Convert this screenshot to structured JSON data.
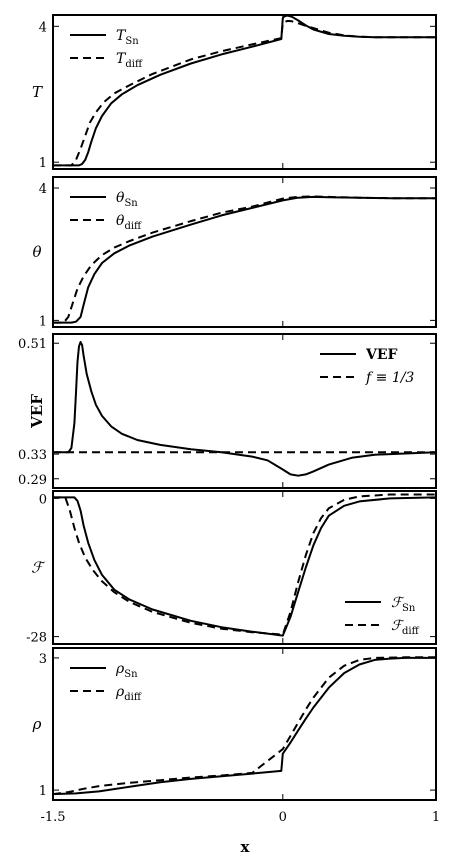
{
  "xlabel": "x",
  "xticks": [
    {
      "value": -1.5,
      "label": "-1.5"
    },
    {
      "value": 0,
      "label": "0"
    },
    {
      "value": 1,
      "label": "1"
    }
  ],
  "xlim": [
    -1.5,
    1
  ],
  "colors": {
    "line": "#000000",
    "background": "#ffffff"
  },
  "chart_data": [
    {
      "type": "line",
      "ylabel": "T",
      "ylim": [
        0.85,
        4.25
      ],
      "yticks": [
        {
          "value": 1,
          "label": "1"
        },
        {
          "value": 4,
          "label": "4"
        }
      ],
      "legend": {
        "position": "top-left"
      },
      "series": [
        {
          "name": "T",
          "sub": "Sn",
          "dash": "solid",
          "x": [
            -1.5,
            -1.33,
            -1.31,
            -1.29,
            -1.27,
            -1.25,
            -1.22,
            -1.18,
            -1.12,
            -1.05,
            -0.95,
            -0.8,
            -0.6,
            -0.4,
            -0.2,
            -0.01,
            0.0,
            0.01,
            0.03,
            0.06,
            0.1,
            0.15,
            0.2,
            0.3,
            0.4,
            0.5,
            0.6,
            0.8,
            1.0
          ],
          "y": [
            0.93,
            0.93,
            0.96,
            1.05,
            1.22,
            1.45,
            1.75,
            2.02,
            2.3,
            2.5,
            2.7,
            2.93,
            3.18,
            3.38,
            3.55,
            3.72,
            4.18,
            4.22,
            4.24,
            4.21,
            4.13,
            4.02,
            3.93,
            3.83,
            3.79,
            3.77,
            3.76,
            3.76,
            3.76
          ]
        },
        {
          "name": "T",
          "sub": "diff",
          "dash": "dashed",
          "x": [
            -1.5,
            -1.38,
            -1.35,
            -1.32,
            -1.29,
            -1.26,
            -1.22,
            -1.17,
            -1.1,
            -1.0,
            -0.85,
            -0.6,
            -0.4,
            -0.2,
            -0.01,
            0.0,
            0.03,
            0.06,
            0.1,
            0.15,
            0.2,
            0.3,
            0.4,
            0.5,
            0.6,
            0.8,
            1.0
          ],
          "y": [
            0.93,
            0.93,
            1.05,
            1.3,
            1.58,
            1.87,
            2.1,
            2.32,
            2.52,
            2.7,
            2.95,
            3.27,
            3.45,
            3.6,
            3.74,
            4.08,
            4.12,
            4.11,
            4.07,
            4.01,
            3.96,
            3.86,
            3.8,
            3.77,
            3.76,
            3.76,
            3.76
          ]
        }
      ]
    },
    {
      "type": "line",
      "ylabel": "θ",
      "ylim": [
        0.85,
        4.25
      ],
      "yticks": [
        {
          "value": 1,
          "label": "1"
        },
        {
          "value": 4,
          "label": "4"
        }
      ],
      "legend": {
        "position": "top-left"
      },
      "series": [
        {
          "name": "θ",
          "sub": "Sn",
          "dash": "solid",
          "x": [
            -1.5,
            -1.38,
            -1.35,
            -1.32,
            -1.3,
            -1.27,
            -1.23,
            -1.18,
            -1.1,
            -1.0,
            -0.85,
            -0.6,
            -0.4,
            -0.2,
            0.0,
            0.1,
            0.2,
            0.3,
            0.5,
            0.7,
            1.0
          ],
          "y": [
            0.95,
            0.95,
            0.97,
            1.08,
            1.35,
            1.75,
            2.05,
            2.3,
            2.52,
            2.7,
            2.9,
            3.17,
            3.38,
            3.55,
            3.72,
            3.78,
            3.8,
            3.79,
            3.78,
            3.77,
            3.77
          ]
        },
        {
          "name": "θ",
          "sub": "diff",
          "dash": "dashed",
          "x": [
            -1.5,
            -1.43,
            -1.4,
            -1.37,
            -1.34,
            -1.3,
            -1.25,
            -1.18,
            -1.1,
            -1.0,
            -0.85,
            -0.6,
            -0.4,
            -0.2,
            0.0,
            0.1,
            0.2,
            0.3,
            0.5,
            0.7,
            1.0
          ],
          "y": [
            0.95,
            0.95,
            1.08,
            1.4,
            1.72,
            2.0,
            2.25,
            2.48,
            2.65,
            2.8,
            2.99,
            3.25,
            3.44,
            3.58,
            3.76,
            3.8,
            3.81,
            3.8,
            3.78,
            3.77,
            3.77
          ]
        }
      ]
    },
    {
      "type": "line",
      "ylabel": "VEF",
      "ylim": [
        0.275,
        0.525
      ],
      "yticks": [
        {
          "value": 0.29,
          "label": "0.29"
        },
        {
          "value": 0.33,
          "label": "0.33"
        },
        {
          "value": 0.51,
          "label": "0.51"
        }
      ],
      "legend": {
        "position": "top-right"
      },
      "series": [
        {
          "name": "VEF",
          "sub": "",
          "dash": "solid",
          "x": [
            -1.5,
            -1.4,
            -1.38,
            -1.36,
            -1.35,
            -1.34,
            -1.33,
            -1.32,
            -1.31,
            -1.3,
            -1.28,
            -1.25,
            -1.22,
            -1.18,
            -1.12,
            -1.05,
            -0.95,
            -0.8,
            -0.6,
            -0.4,
            -0.2,
            -0.1,
            0.0,
            0.05,
            0.1,
            0.15,
            0.2,
            0.3,
            0.45,
            0.6,
            0.8,
            1.0
          ],
          "y": [
            0.333,
            0.333,
            0.34,
            0.38,
            0.43,
            0.48,
            0.505,
            0.512,
            0.507,
            0.49,
            0.46,
            0.432,
            0.41,
            0.392,
            0.375,
            0.363,
            0.353,
            0.345,
            0.338,
            0.333,
            0.326,
            0.32,
            0.305,
            0.297,
            0.295,
            0.297,
            0.302,
            0.313,
            0.324,
            0.329,
            0.331,
            0.333
          ]
        },
        {
          "name": "f ≡ 1/3",
          "sub": "",
          "dash": "dashed",
          "x": [
            -1.5,
            1.0
          ],
          "y": [
            0.333,
            0.333
          ]
        }
      ]
    },
    {
      "type": "line",
      "ylabel": "ℱ",
      "ylim": [
        -29.5,
        1.5
      ],
      "yticks": [
        {
          "value": -28,
          "label": "-28"
        },
        {
          "value": 0,
          "label": "0"
        }
      ],
      "legend": {
        "position": "bottom-right"
      },
      "series": [
        {
          "name": "ℱ",
          "sub": "Sn",
          "dash": "solid",
          "x": [
            -1.5,
            -1.36,
            -1.34,
            -1.32,
            -1.3,
            -1.27,
            -1.23,
            -1.18,
            -1.1,
            -1.0,
            -0.85,
            -0.6,
            -0.4,
            -0.2,
            0.0,
            0.05,
            0.1,
            0.15,
            0.2,
            0.25,
            0.3,
            0.4,
            0.5,
            0.7,
            1.0
          ],
          "y": [
            0.2,
            0.2,
            -0.5,
            -2.5,
            -5.5,
            -9.0,
            -12.5,
            -15.5,
            -18.5,
            -20.5,
            -22.5,
            -24.8,
            -26.1,
            -27.0,
            -27.8,
            -24.0,
            -19.0,
            -14.0,
            -9.5,
            -6.0,
            -3.5,
            -1.5,
            -0.6,
            0.0,
            0.2
          ]
        },
        {
          "name": "ℱ",
          "sub": "diff",
          "dash": "dashed",
          "x": [
            -1.5,
            -1.42,
            -1.39,
            -1.36,
            -1.33,
            -1.29,
            -1.24,
            -1.18,
            -1.1,
            -1.0,
            -0.85,
            -0.6,
            -0.4,
            -0.2,
            0.0,
            0.05,
            0.1,
            0.15,
            0.2,
            0.25,
            0.3,
            0.4,
            0.5,
            0.7,
            1.0
          ],
          "y": [
            0.2,
            0.2,
            -2.5,
            -6.0,
            -9.0,
            -12.0,
            -14.5,
            -16.8,
            -19.0,
            -21.0,
            -23.0,
            -25.2,
            -26.4,
            -27.1,
            -27.6,
            -23.0,
            -17.0,
            -11.5,
            -7.0,
            -4.0,
            -2.0,
            -0.3,
            0.4,
            0.8,
            0.8
          ]
        }
      ]
    },
    {
      "type": "line",
      "ylabel": "ρ",
      "ylim": [
        0.85,
        3.15
      ],
      "yticks": [
        {
          "value": 1,
          "label": "1"
        },
        {
          "value": 3,
          "label": "3"
        }
      ],
      "legend": {
        "position": "top-left"
      },
      "series": [
        {
          "name": "ρ",
          "sub": "Sn",
          "dash": "solid",
          "x": [
            -1.5,
            -1.35,
            -1.2,
            -1.0,
            -0.8,
            -0.6,
            -0.4,
            -0.2,
            -0.01,
            0.0,
            0.05,
            0.1,
            0.15,
            0.2,
            0.3,
            0.4,
            0.5,
            0.6,
            0.7,
            0.8,
            1.0
          ],
          "y": [
            0.94,
            0.95,
            0.98,
            1.05,
            1.12,
            1.17,
            1.21,
            1.25,
            1.29,
            1.55,
            1.72,
            1.9,
            2.08,
            2.25,
            2.55,
            2.77,
            2.9,
            2.97,
            2.99,
            3.0,
            3.0
          ]
        },
        {
          "name": "ρ",
          "sub": "diff",
          "dash": "dashed",
          "x": [
            -1.5,
            -1.4,
            -1.3,
            -1.2,
            -1.0,
            -0.8,
            -0.6,
            -0.4,
            -0.2,
            0.0,
            0.05,
            0.1,
            0.15,
            0.2,
            0.3,
            0.4,
            0.5,
            0.6,
            0.8,
            1.0
          ],
          "y": [
            0.94,
            0.97,
            1.02,
            1.06,
            1.11,
            1.15,
            1.19,
            1.22,
            1.26,
            1.62,
            1.82,
            2.02,
            2.22,
            2.4,
            2.7,
            2.88,
            2.97,
            3.0,
            3.01,
            3.01
          ]
        }
      ]
    }
  ]
}
